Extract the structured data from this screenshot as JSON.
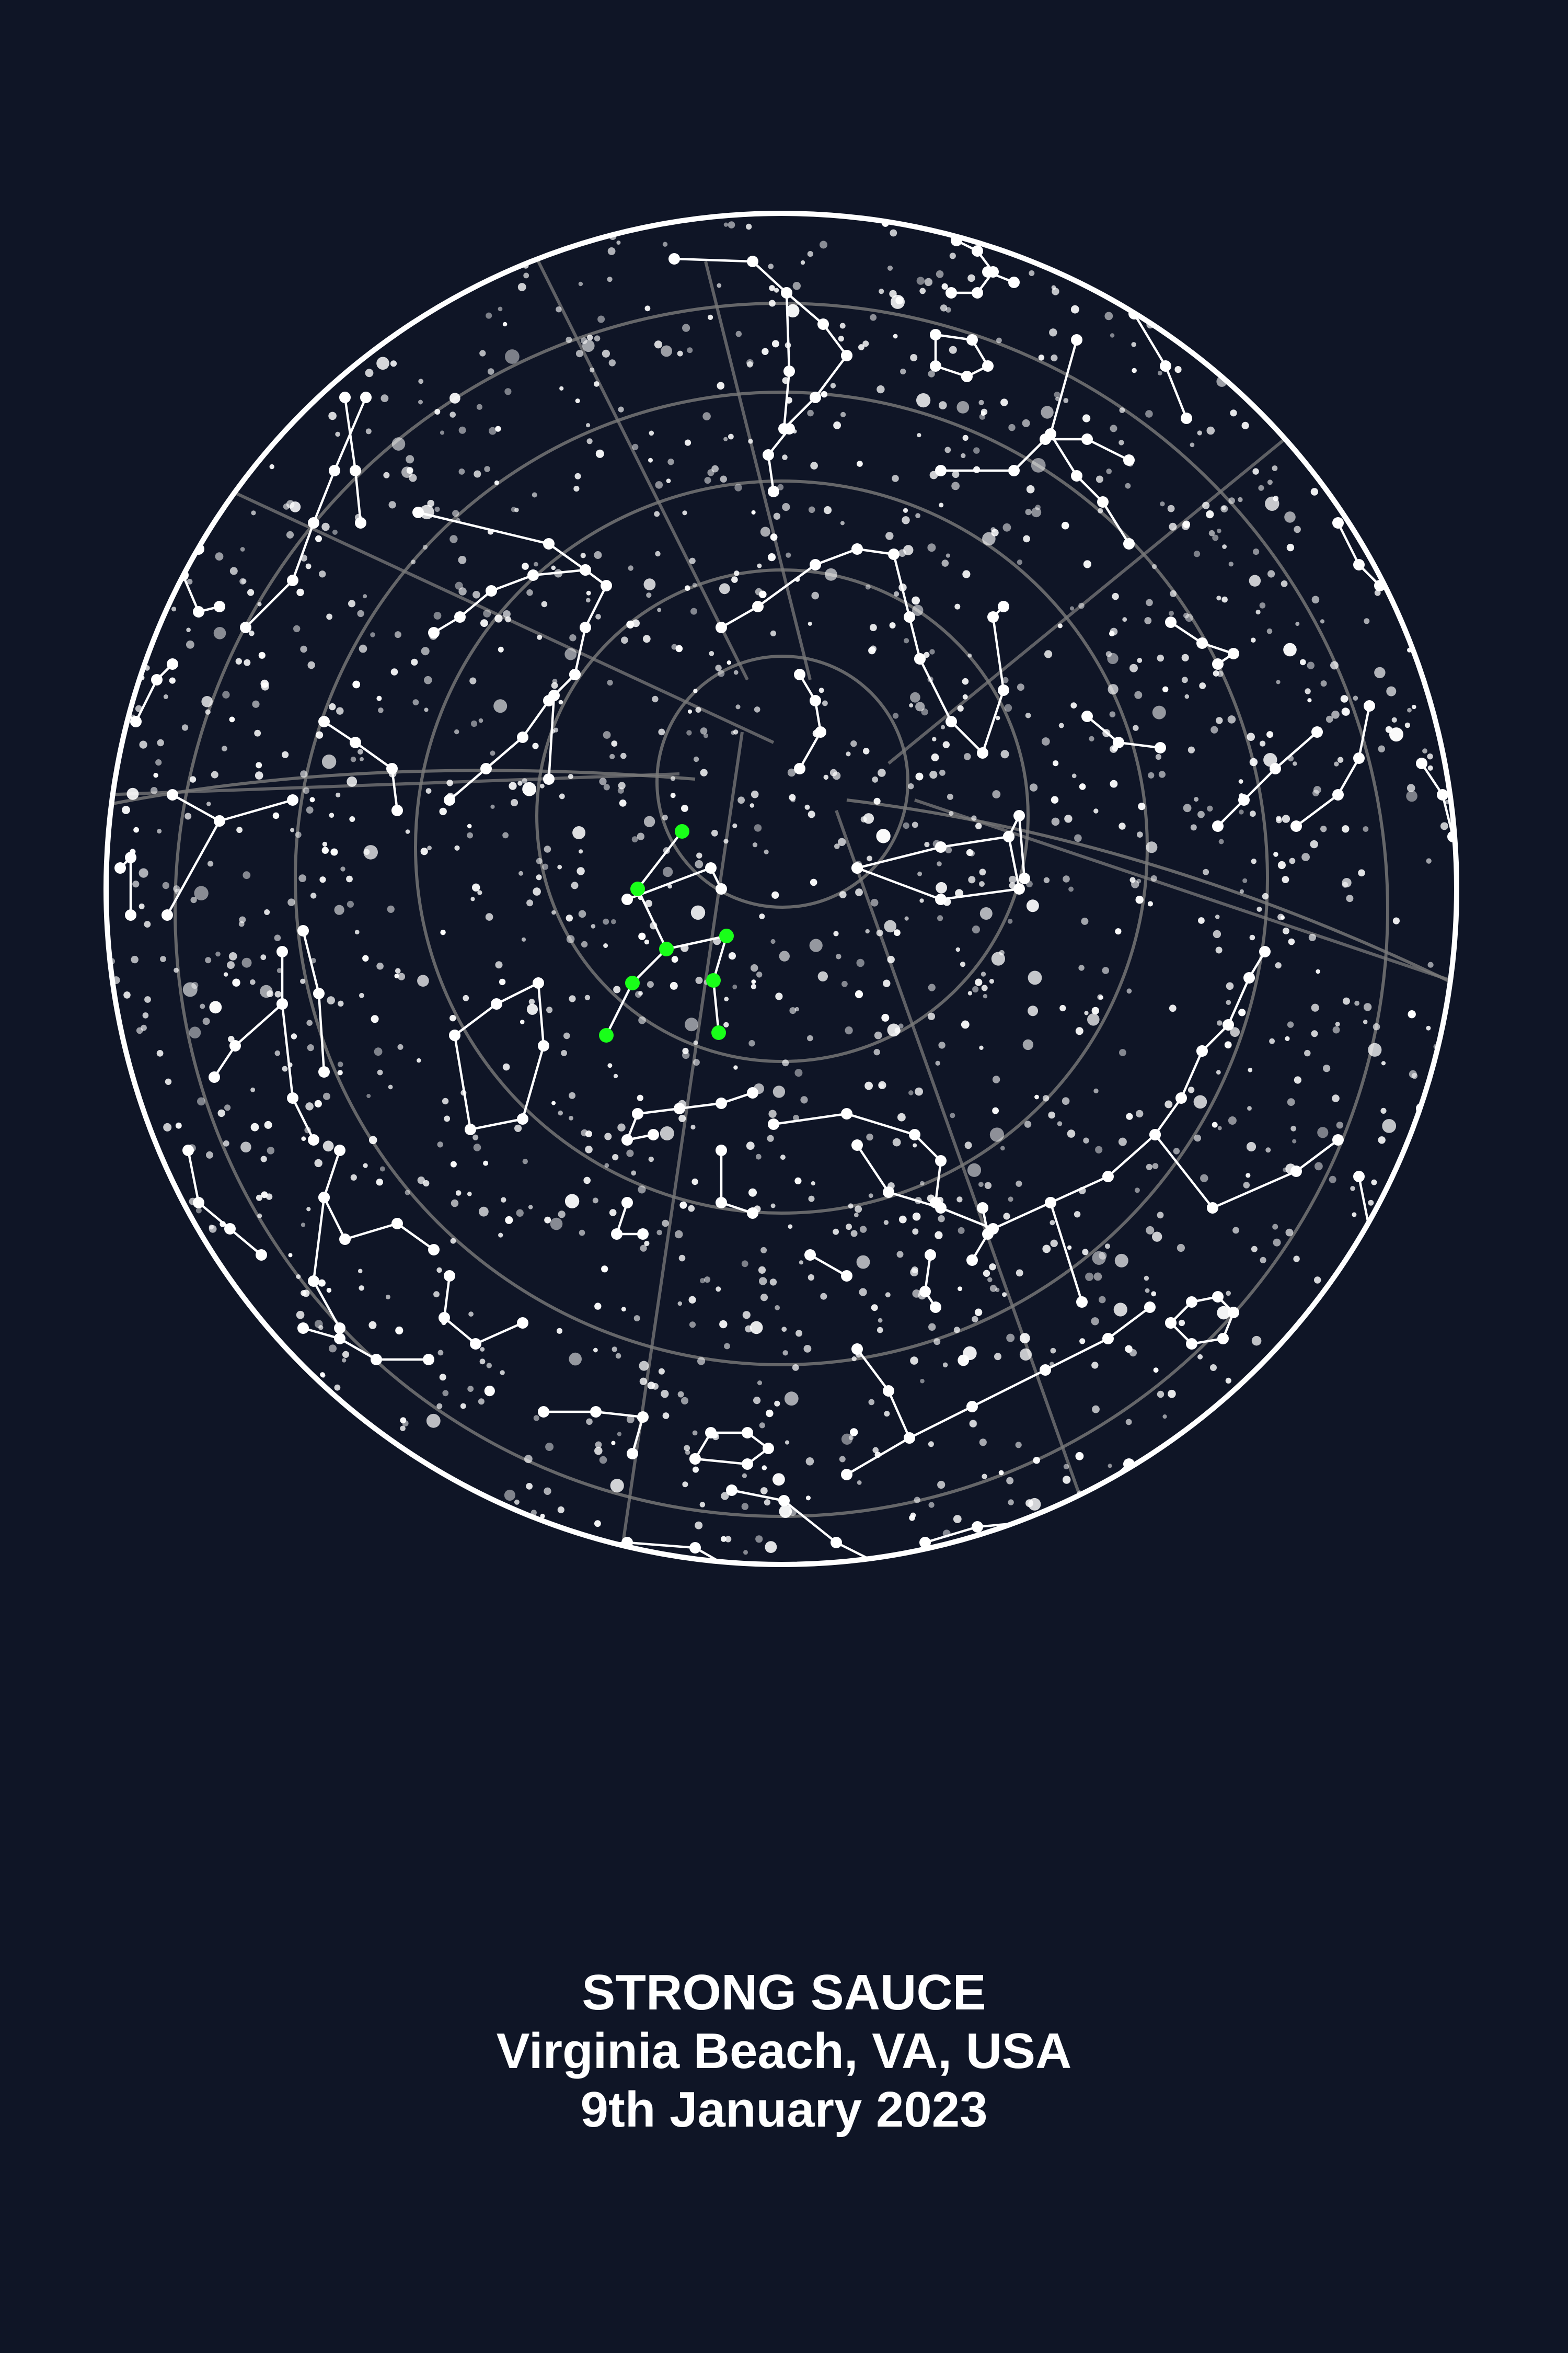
{
  "poster": {
    "title": "STRONG SAUCE",
    "location": "Virginia Beach, VA, USA",
    "date": "9th January 2023"
  },
  "colors": {
    "background": "#0f1526",
    "stars": "#ffffff",
    "grid": "#7a7a7a",
    "highlight_constellation": "#19ff19",
    "caption_text": "#ffffff"
  }
}
